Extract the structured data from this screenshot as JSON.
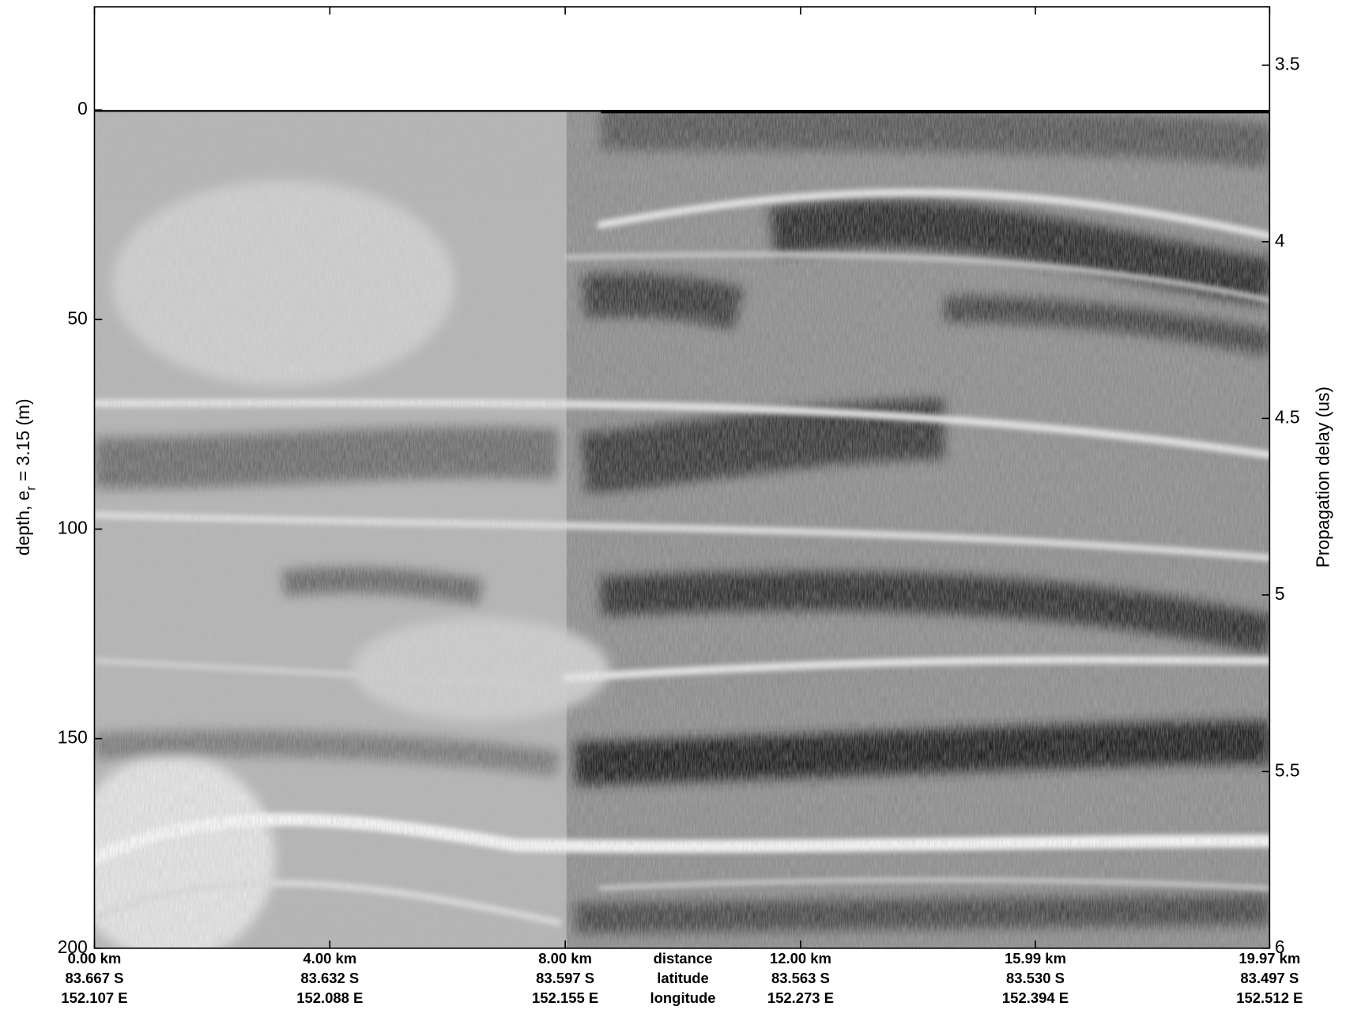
{
  "chart_data": {
    "type": "radargram",
    "ylabel": {
      "text": "depth, e",
      "subscript": "r",
      "rest": " = 3.15 (m)"
    },
    "y2label": "Propagation delay (us)",
    "xlim": [
      0,
      19.97
    ],
    "ylim": [
      -24.6,
      200
    ],
    "yticks": [
      0,
      50,
      100,
      150,
      200
    ],
    "y2lim": [
      3.335,
      6
    ],
    "y2ticks": [
      3.5,
      4,
      4.5,
      5,
      5.5,
      6
    ],
    "xticks": [
      {
        "value": 0,
        "label": "0.00 km"
      },
      {
        "value": 4,
        "label": "4.00 km"
      },
      {
        "value": 8,
        "label": "8.00 km"
      },
      {
        "value": 12,
        "label": "12.00 km"
      },
      {
        "value": 15.99,
        "label": "15.99 km"
      },
      {
        "value": 19.97,
        "label": "19.97 km"
      }
    ],
    "latitudes": [
      "83.667 S",
      "83.632 S",
      "83.597 S",
      "83.563 S",
      "83.530 S",
      "83.497 S"
    ],
    "longitudes": [
      "152.107 E",
      "152.088 E",
      "152.155 E",
      "152.273 E",
      "152.394 E",
      "152.512 E"
    ],
    "row_labels": [
      "distance",
      "latitude",
      "longitude"
    ]
  }
}
